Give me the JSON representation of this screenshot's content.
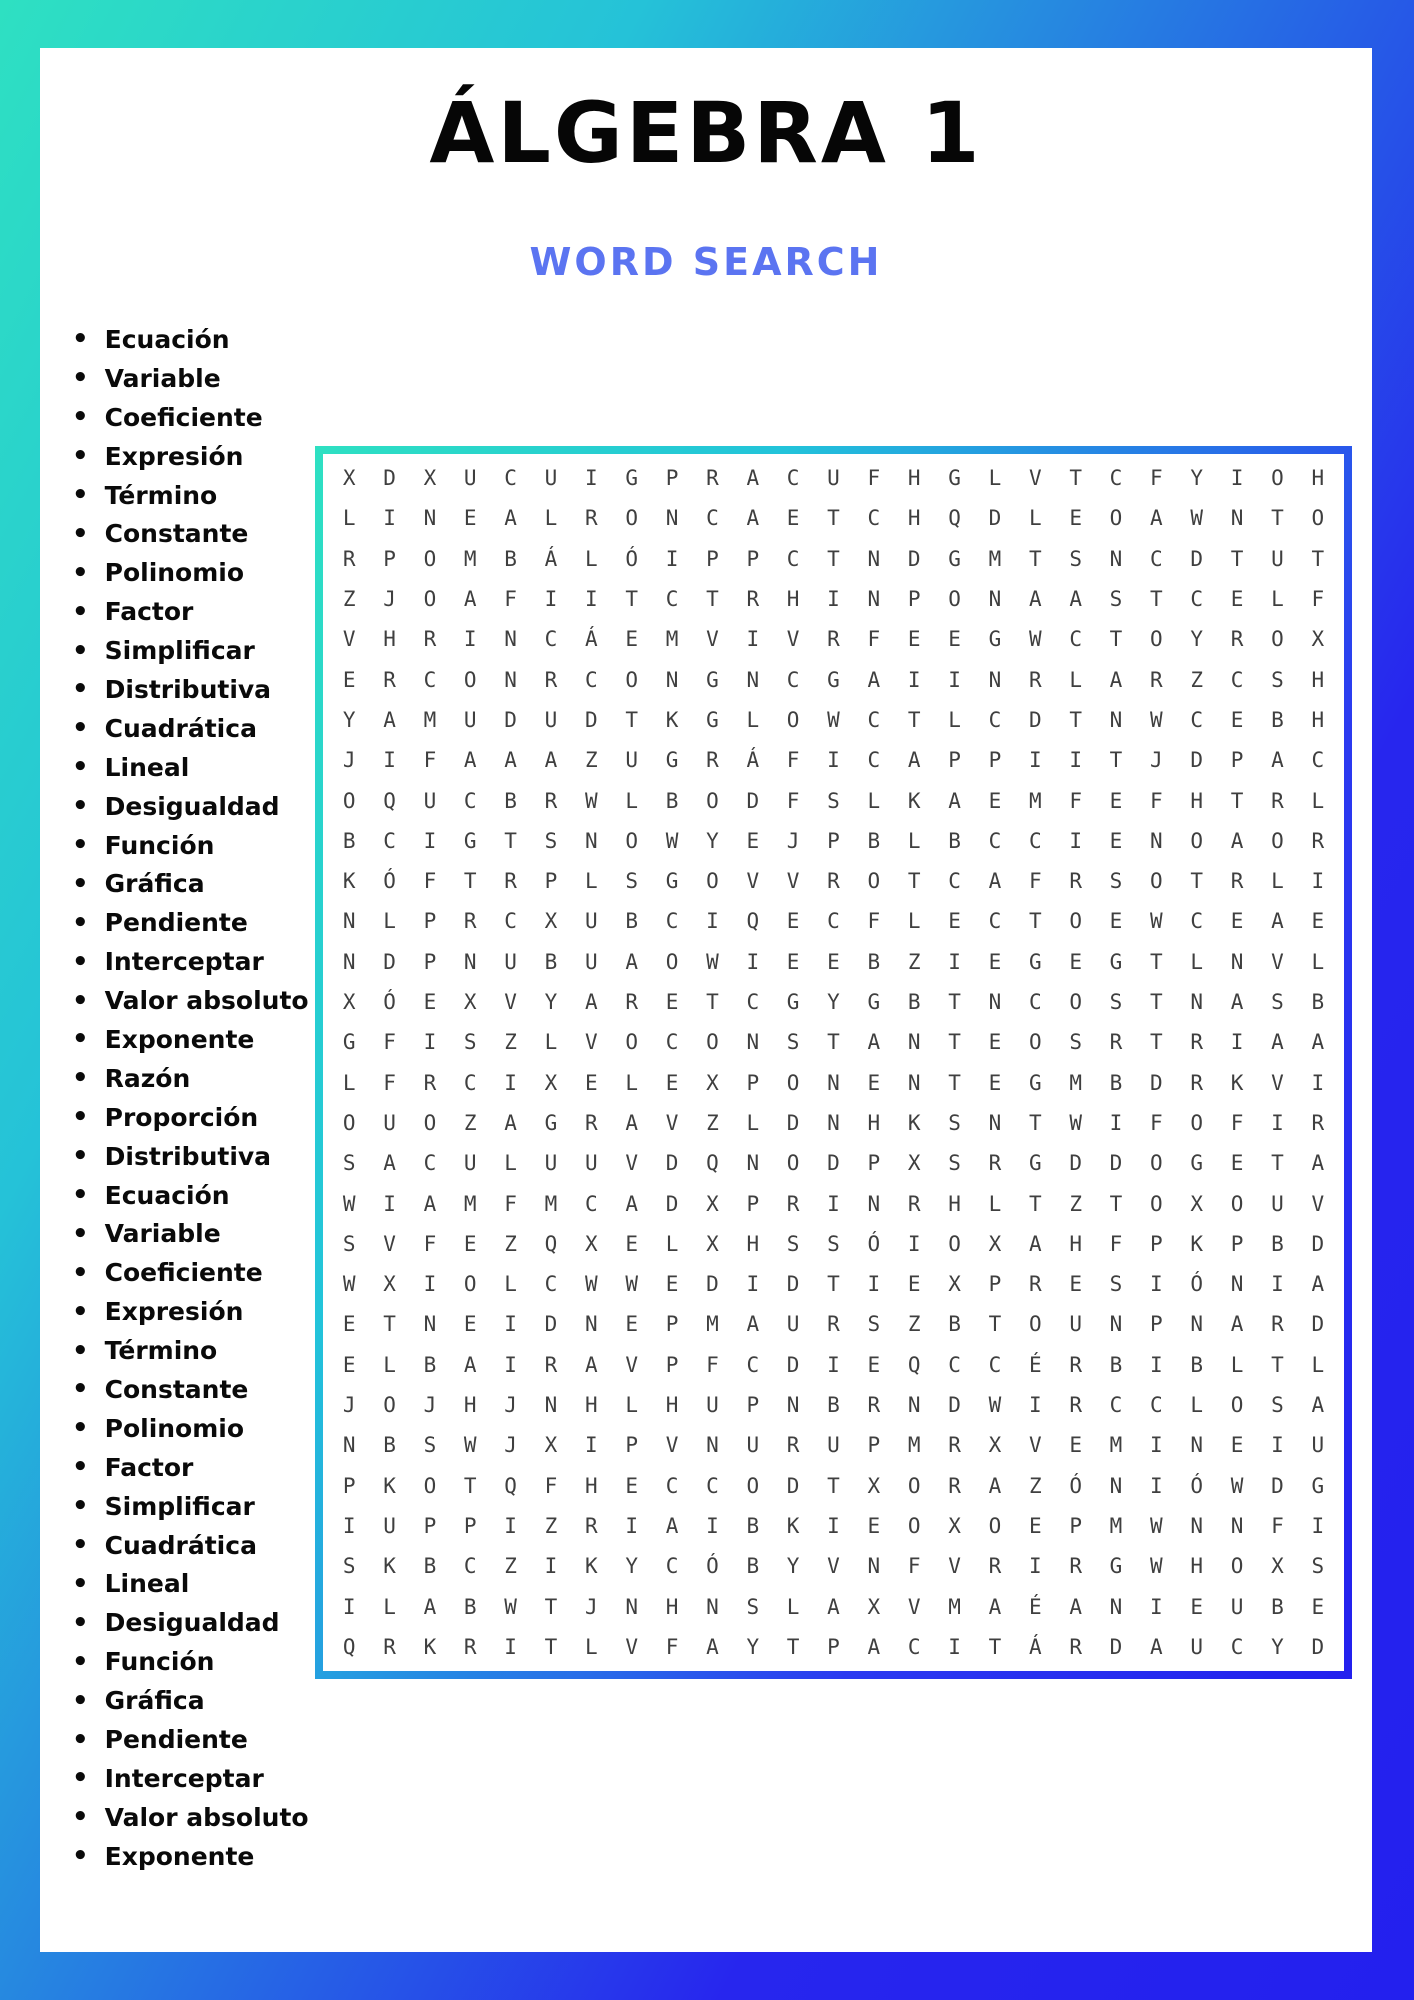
{
  "page": {
    "title": "ÁLGEBRA 1",
    "subtitle": "WORD SEARCH",
    "colors": {
      "frame_gradient_start": "#2ee0c2",
      "frame_gradient_end": "#2320ee",
      "subtitle_blue": "#5b74f1",
      "title_black": "#060606",
      "grid_letter_gray": "#3f3f3f",
      "background_white": "#ffffff"
    },
    "bullet_glyph": "•"
  },
  "word_list": [
    "Ecuación",
    "Variable",
    "Coeficiente",
    "Expresión",
    "Término",
    "Constante",
    "Polinomio",
    "Factor",
    "Simplificar",
    "Distributiva",
    "Cuadrática",
    "Lineal",
    "Desigualdad",
    "Función",
    "Gráfica",
    "Pendiente",
    "Interceptar",
    "Valor absoluto",
    "Exponente",
    "Razón",
    "Proporción",
    "Distributiva",
    "Ecuación",
    "Variable",
    "Coeficiente",
    "Expresión",
    "Término",
    "Constante",
    "Polinomio",
    "Factor",
    "Simplificar",
    "Cuadrática",
    "Lineal",
    "Desigualdad",
    "Función",
    "Gráfica",
    "Pendiente",
    "Interceptar",
    "Valor absoluto",
    "Exponente"
  ],
  "grid": {
    "rows": 30,
    "cols": 25,
    "letters": [
      "XDXUCUIGPRACUFHGLVTCFYIOH",
      "LINEALRONCAETCHQDLEOAWNTO",
      "RPOMBÁLÓIPPCTNDGMTSNCDTUT",
      "ZJOAFIITCTRHINPONAASTCELF",
      "VHRINCÁEMVIVRFEEGWCTOYROX",
      "ERCONRCONGNCGAIINRLARZCSH",
      "YAMUDUDTKGLOWCTLCDTNWCEBH",
      "JIFAAAZUGRÁFICAPPIITJDPAC",
      "OQUCBRWLBODFSLKAEMFEFHTRL",
      "BCIGTSNOWYEJPBLBCCIENOAOR",
      "KÓFTRPLSGOVVROTCAFRSOTRLI",
      "NLPRCXUBCIQECFLECTOEWCEAE",
      "NDPNUBUAOWIEEBZIEGEGTLNVL",
      "XÓEXVYARETCGYGBTNCOSTNASB",
      "GFISZLVOCONSTANTEOSRTRIAA",
      "LFRCIXELEXPONENTEGMBDRKVI",
      "OUOZAGRAVZLDNHKSNTWIFOFIR",
      "SACULUUVDQNODPXSRGDDOGETA",
      "WIAMFMCADXPRINRHLTZTOXOUV",
      "SVFEZQXELXHSSÓIOXAHFPKPBD",
      "WXIOLCWWEDIDTIEXPRESIÓNIA",
      "ETNEIDNEPMAURSZBTOUNPNARD",
      "ELBAIRAVPFCDIEQCCÉRBIBLTL",
      "JOJHJNHLHUPNBRNDWIRCCLOSA",
      "NBSWJXIPVNURUPMRXVEMINEIU",
      "PKOTQFHECCODTXORAZÓNIÓWDG",
      "IUPPIZRIAIBKIEOXOEPMWNNFI",
      "SKBCZIKYCÓBYVNFVRIRGWHOXS",
      "ILABWTJNHNSLAXVMAÉANIEUBE",
      "QRKRITLVFAYTPACITÁRDAUCYD"
    ]
  }
}
